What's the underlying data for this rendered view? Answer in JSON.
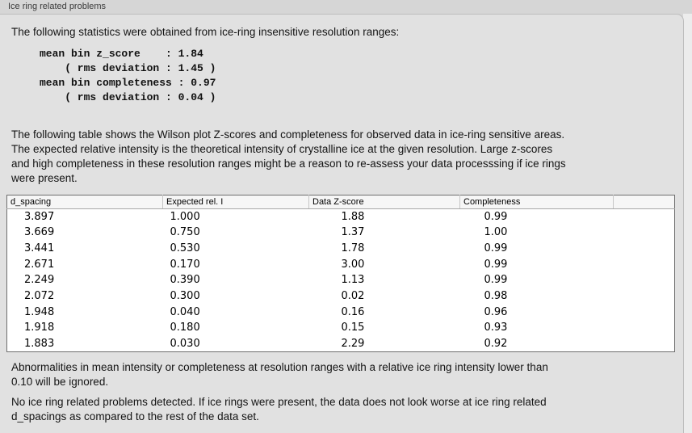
{
  "panel": {
    "title": "Ice ring related problems",
    "intro": "The following statistics were obtained from ice-ring insensitive resolution ranges:",
    "stats_block": {
      "lines": [
        "mean bin z_score    : 1.84",
        "    ( rms deviation : 1.45 )",
        "mean bin completeness : 0.97",
        "    ( rms deviation : 0.04 )"
      ],
      "mean_bin_z_score": "1.84",
      "z_score_rms_deviation": "1.45",
      "mean_bin_completeness": "0.97",
      "completeness_rms_deviation": "0.04"
    },
    "description": {
      "lines": [
        "The following table shows the Wilson plot Z-scores and completeness for observed data in ice-ring sensitive areas.",
        "The expected relative intensity is the theoretical intensity of crystalline ice at the given resolution. Large z-scores",
        "and high completeness in these resolution ranges might be a reason to re-assess your data processsing if ice rings",
        "were present."
      ]
    },
    "table": {
      "headers": [
        "d_spacing",
        "Expected rel. I",
        "Data Z-score",
        "Completeness",
        ""
      ],
      "rows": [
        [
          "3.897",
          "1.000",
          "1.88",
          "0.99"
        ],
        [
          "3.669",
          "0.750",
          "1.37",
          "1.00"
        ],
        [
          "3.441",
          "0.530",
          "1.78",
          "0.99"
        ],
        [
          "2.671",
          "0.170",
          "3.00",
          "0.99"
        ],
        [
          "2.249",
          "0.390",
          "1.13",
          "0.99"
        ],
        [
          "2.072",
          "0.300",
          "0.02",
          "0.98"
        ],
        [
          "1.948",
          "0.040",
          "0.16",
          "0.96"
        ],
        [
          "1.918",
          "0.180",
          "0.15",
          "0.93"
        ],
        [
          "1.883",
          "0.030",
          "2.29",
          "0.92"
        ]
      ]
    },
    "note": {
      "lines": [
        "Abnormalities in mean intensity or completeness at resolution ranges with a relative ice ring intensity lower than",
        "0.10 will be ignored."
      ]
    },
    "conclusion": {
      "lines": [
        "No ice ring related problems detected. If ice rings were present, the data does not look worse at ice ring related",
        "d_spacings as compared to the rest of the data set."
      ]
    }
  },
  "colors": {
    "window_strip_bg": "#d6d6d6",
    "panel_bg": "#e1e1e1",
    "panel_border": "#bdbdbd",
    "right_gutter_bg": "#ececec",
    "table_border": "#6e6e6e",
    "table_header_bg": "#f6f6f6",
    "table_body_bg": "#ffffff",
    "text": "#141414"
  }
}
